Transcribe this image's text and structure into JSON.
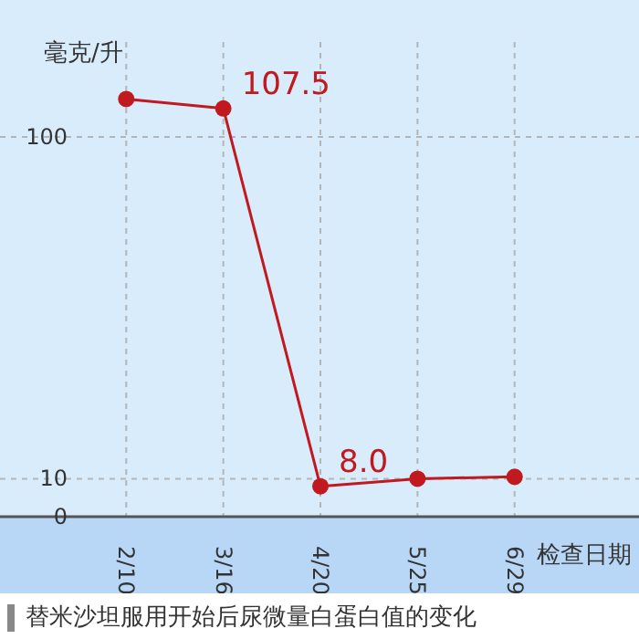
{
  "chart_data": {
    "type": "line",
    "title": "替米沙坦服用开始后尿微量白蛋白值的变化",
    "xlabel": "检查日期",
    "ylabel": "毫克/升",
    "categories": [
      "2/10",
      "3/16",
      "4/20",
      "5/25",
      "6/29"
    ],
    "series": [
      {
        "color": "#c0191f",
        "values": [
          110,
          107.5,
          8.0,
          10,
          10.5
        ],
        "value_labels": [
          null,
          "107.5",
          "8.0",
          null,
          null
        ]
      }
    ],
    "ylim": [
      0,
      125
    ],
    "yticks": [
      0,
      10,
      100
    ],
    "grid": true,
    "legend": false,
    "marker": "circle",
    "line_style": "solid"
  }
}
